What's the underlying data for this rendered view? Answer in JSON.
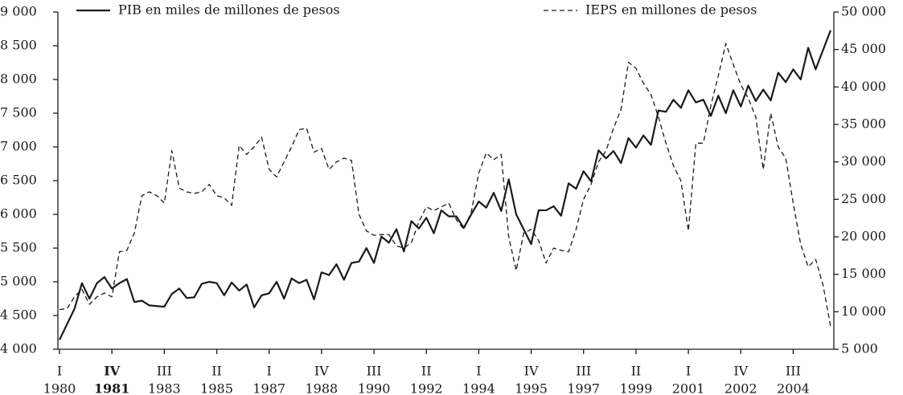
{
  "chart_data": {
    "type": "line",
    "categories": [
      [
        "I",
        "1980"
      ],
      null,
      null,
      null,
      null,
      null,
      null,
      [
        "IV",
        "1981"
      ],
      null,
      null,
      null,
      null,
      null,
      null,
      [
        "III",
        "1983"
      ],
      null,
      null,
      null,
      null,
      null,
      null,
      [
        "II",
        "1985"
      ],
      null,
      null,
      null,
      null,
      null,
      null,
      [
        "I",
        "1987"
      ],
      null,
      null,
      null,
      null,
      null,
      null,
      [
        "IV",
        "1988"
      ],
      null,
      null,
      null,
      null,
      null,
      null,
      [
        "III",
        "1990"
      ],
      null,
      null,
      null,
      null,
      null,
      null,
      [
        "II",
        "1992"
      ],
      null,
      null,
      null,
      null,
      null,
      null,
      [
        "I",
        "1994"
      ],
      null,
      null,
      null,
      null,
      null,
      null,
      [
        "IV",
        "1995"
      ],
      null,
      null,
      null,
      null,
      null,
      null,
      [
        "III",
        "1997"
      ],
      null,
      null,
      null,
      null,
      null,
      null,
      [
        "II",
        "1999"
      ],
      null,
      null,
      null,
      null,
      null,
      null,
      [
        "I",
        "2001"
      ],
      null,
      null,
      null,
      null,
      null,
      null,
      [
        "IV",
        "2002"
      ],
      null,
      null,
      null,
      null,
      null,
      null,
      [
        "III",
        "2004"
      ],
      null,
      null,
      null,
      null,
      null
    ],
    "series": [
      {
        "name": "PIB en miles de millones de pesos",
        "color": "#1a1a1a",
        "line_style": "solid",
        "axis": "y",
        "values": [
          4140,
          4370,
          4600,
          4980,
          4750,
          4980,
          5070,
          4900,
          4980,
          5040,
          4700,
          4720,
          4650,
          4640,
          4630,
          4820,
          4900,
          4760,
          4770,
          4970,
          5000,
          4980,
          4800,
          4990,
          4870,
          4960,
          4620,
          4800,
          4830,
          5000,
          4750,
          5050,
          4980,
          5030,
          4740,
          5140,
          5100,
          5260,
          5030,
          5280,
          5300,
          5500,
          5280,
          5670,
          5580,
          5780,
          5450,
          5900,
          5790,
          5950,
          5720,
          6060,
          5970,
          5970,
          5800,
          6000,
          6190,
          6100,
          6320,
          6050,
          6520,
          6000,
          5780,
          5560,
          6060,
          6060,
          6120,
          5980,
          6460,
          6380,
          6640,
          6490,
          6950,
          6830,
          6940,
          6760,
          7130,
          6990,
          7170,
          7030,
          7540,
          7520,
          7700,
          7580,
          7840,
          7660,
          7700,
          7460,
          7760,
          7500,
          7840,
          7600,
          7910,
          7680,
          7850,
          7690,
          8100,
          7960,
          8150,
          8000,
          8470,
          8150,
          8440,
          8730
        ]
      },
      {
        "name": "IEPS en millones de pesos",
        "color": "#1a1a1a",
        "line_style": "dashed",
        "axis": "y2",
        "values": [
          10300,
          10400,
          12000,
          13000,
          11000,
          12000,
          12500,
          12000,
          18000,
          18200,
          20500,
          25500,
          26000,
          25500,
          24500,
          31500,
          26500,
          26000,
          25800,
          26000,
          27000,
          25500,
          25200,
          24200,
          32200,
          31000,
          32000,
          33300,
          29000,
          28000,
          30000,
          32000,
          34300,
          34500,
          31300,
          31800,
          29000,
          30000,
          30500,
          30200,
          23000,
          20800,
          20200,
          20300,
          20300,
          18800,
          18500,
          19200,
          22000,
          24000,
          23500,
          24000,
          24500,
          22300,
          21000,
          23300,
          28500,
          31200,
          30300,
          31000,
          20000,
          15500,
          20500,
          21000,
          19500,
          16500,
          18500,
          18200,
          18000,
          21000,
          25000,
          27000,
          30000,
          31500,
          34500,
          37000,
          43300,
          42500,
          40500,
          39000,
          36000,
          32500,
          29500,
          27500,
          20800,
          32500,
          32500,
          37500,
          41500,
          45800,
          43000,
          40300,
          38500,
          36000,
          29000,
          36500,
          32000,
          30500,
          24500,
          19000,
          16000,
          17000,
          13500,
          8000
        ]
      }
    ],
    "ylim": [
      4000,
      9000
    ],
    "yticks": [
      {
        "value": 4000,
        "label": "4 000"
      },
      {
        "value": 4500,
        "label": "4 500"
      },
      {
        "value": 5000,
        "label": "5 000"
      },
      {
        "value": 5500,
        "label": "5 500"
      },
      {
        "value": 6000,
        "label": "6 000"
      },
      {
        "value": 6500,
        "label": "6 500"
      },
      {
        "value": 7000,
        "label": "7 000"
      },
      {
        "value": 7500,
        "label": "7 500"
      },
      {
        "value": 8000,
        "label": "8 000"
      },
      {
        "value": 8500,
        "label": "8 500"
      },
      {
        "value": 9000,
        "label": "9 000"
      }
    ],
    "y2lim": [
      5000,
      50000
    ],
    "y2ticks": [
      {
        "value": 5000,
        "label": "5 000"
      },
      {
        "value": 10000,
        "label": "10 000"
      },
      {
        "value": 15000,
        "label": "15 000"
      },
      {
        "value": 20000,
        "label": "20 000"
      },
      {
        "value": 25000,
        "label": "25 000"
      },
      {
        "value": 30000,
        "label": "30 000"
      },
      {
        "value": 35000,
        "label": "35 000"
      },
      {
        "value": 40000,
        "label": "40 000"
      },
      {
        "value": 45000,
        "label": "45 000"
      },
      {
        "value": 50000,
        "label": "50 000"
      }
    ],
    "grid": false
  }
}
